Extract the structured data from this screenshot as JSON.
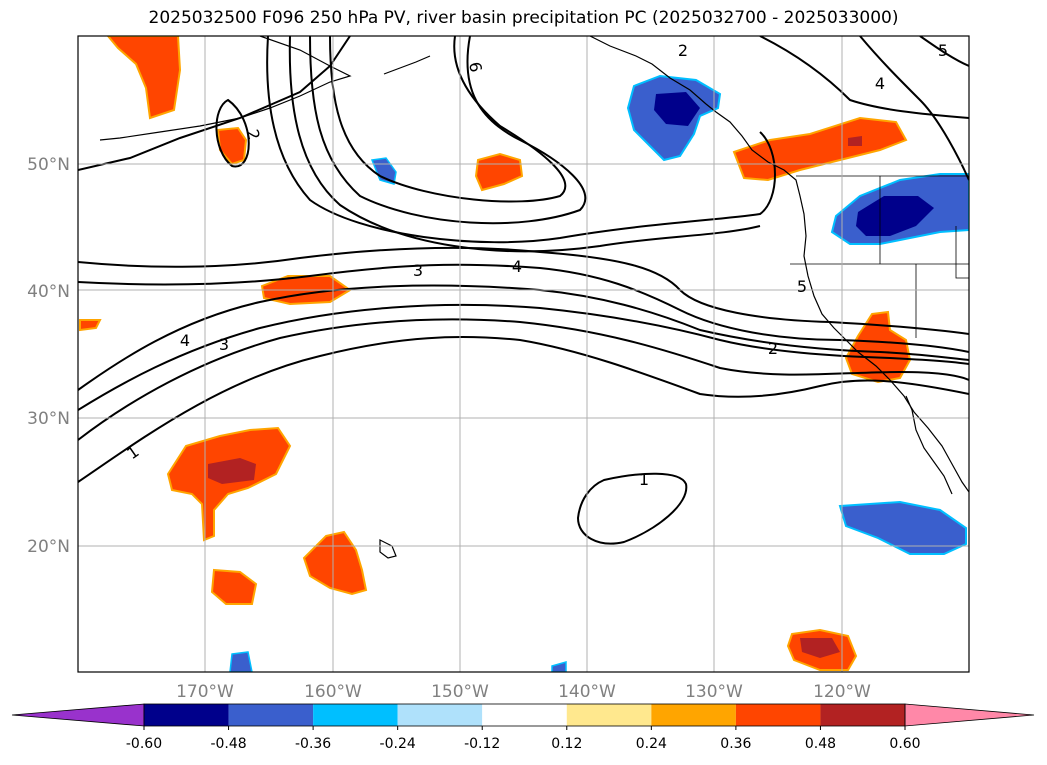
{
  "title": "2025032500 F096 250 hPa PV, river basin precipitation PC (2025032700 - 2025033000)",
  "lat_labels": [
    "50°N",
    "40°N",
    "30°N",
    "20°N"
  ],
  "lon_labels": [
    "170°W",
    "160°W",
    "150°W",
    "140°W",
    "130°W",
    "120°W"
  ],
  "contour_labels": [
    "2",
    "6",
    "2",
    "5",
    "4",
    "3",
    "4",
    "5",
    "4",
    "3",
    "2",
    "1",
    "1"
  ],
  "colorbar": {
    "colors": [
      "#9932cc",
      "#00008b",
      "#3a5fcd",
      "#00bfff",
      "#afe1fb",
      "#ffffff",
      "#ffe88e",
      "#ffa500",
      "#ff4500",
      "#b22222",
      "#ff88a8"
    ],
    "tick_labels": [
      "-0.60",
      "-0.48",
      "-0.36",
      "-0.24",
      "-0.12",
      "0.12",
      "0.24",
      "0.36",
      "0.48",
      "0.60"
    ]
  }
}
